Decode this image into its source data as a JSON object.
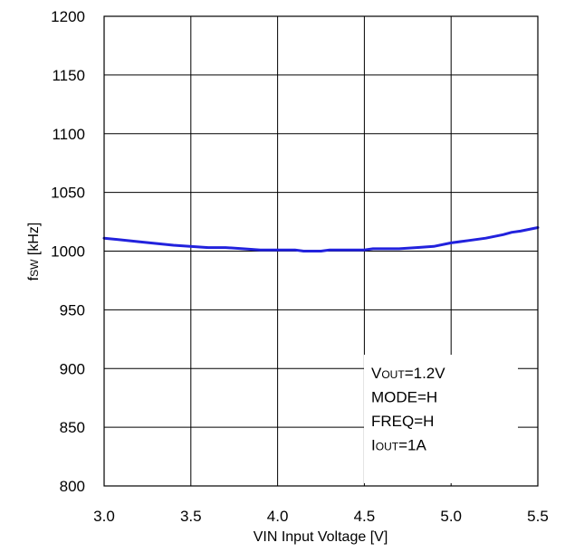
{
  "chart_data": {
    "type": "line",
    "xlabel": "VIN Input Voltage [V]",
    "ylabel_main": "f",
    "ylabel_sub": "SW",
    "ylabel_rest": " [kHz]",
    "xlim": [
      3.0,
      5.5
    ],
    "ylim": [
      800,
      1200
    ],
    "x_ticks": [
      "3.0",
      "3.5",
      "4.0",
      "4.5",
      "5.0",
      "5.5"
    ],
    "y_ticks": [
      "800",
      "850",
      "900",
      "950",
      "1000",
      "1050",
      "1100",
      "1150",
      "1200"
    ],
    "grid": true,
    "line_color": "#2222dd",
    "series": [
      {
        "x": [
          3.0,
          3.2,
          3.4,
          3.6,
          3.7,
          3.8,
          3.9,
          4.0,
          4.1,
          4.15,
          4.2,
          4.25,
          4.3,
          4.4,
          4.5,
          4.55,
          4.6,
          4.7,
          4.8,
          4.9,
          5.0,
          5.1,
          5.2,
          5.3,
          5.35,
          5.4,
          5.5
        ],
        "y": [
          1011,
          1008,
          1005,
          1003,
          1003,
          1002,
          1001,
          1001,
          1001,
          1000,
          1000,
          1000,
          1001,
          1001,
          1001,
          1002,
          1002,
          1002,
          1003,
          1004,
          1007,
          1009,
          1011,
          1014,
          1016,
          1017,
          1020
        ]
      }
    ],
    "annotation": [
      {
        "main": "V",
        "sub": "OUT",
        "rest": "=1.2V"
      },
      {
        "main": "MODE=H",
        "sub": "",
        "rest": ""
      },
      {
        "main": "FREQ=H",
        "sub": "",
        "rest": ""
      },
      {
        "main": "I",
        "sub": "OUT",
        "rest": "=1A"
      }
    ]
  }
}
